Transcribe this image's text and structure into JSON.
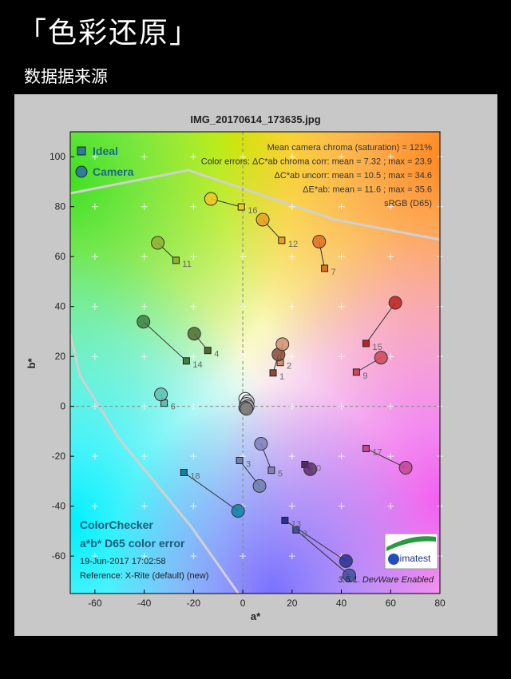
{
  "header": {
    "title": "「色彩还原」",
    "subtitle": "数据据来源"
  },
  "chart_data": {
    "type": "scatter",
    "title": "IMG_20170614_173635.jpg",
    "x_label": "a*",
    "y_label": "b*",
    "xlim": [
      -70,
      80
    ],
    "ylim": [
      -75,
      110
    ],
    "xticks": [
      -60,
      -40,
      -20,
      0,
      20,
      40,
      60,
      80
    ],
    "yticks": [
      -60,
      -40,
      -20,
      0,
      20,
      40,
      60,
      80,
      100
    ],
    "grid": true,
    "legend_position": "upper left",
    "point_labels": [
      1,
      2,
      3,
      4,
      5,
      6,
      7,
      8,
      9,
      10,
      11,
      12,
      13,
      14,
      15,
      16,
      17,
      18,
      null,
      null,
      null,
      null,
      null,
      null
    ],
    "point_colors": [
      "#8b4a3a",
      "#d09070",
      "#6f7fae",
      "#4f6b30",
      "#8080b8",
      "#60c0b0",
      "#e07020",
      "#4050a0",
      "#d04858",
      "#5a2a68",
      "#90b030",
      "#e8a020",
      "#283090",
      "#408040",
      "#c02020",
      "#f0c820",
      "#c04890",
      "#1080a8",
      "#f4f4f4",
      "#dcdcdc",
      "#c4c4c4",
      "#acacac",
      "#949494",
      "#7c7c7c"
    ],
    "series": [
      {
        "name": "Ideal",
        "color": "#2a7f9a",
        "x": [
          12.3,
          15.2,
          -1.3,
          -14.2,
          11.6,
          -31.9,
          33.2,
          21.6,
          46.1,
          25.2,
          -27.1,
          15.8,
          17.1,
          -22.9,
          50,
          -0.6,
          50,
          -23.9,
          0,
          0,
          0,
          0,
          0,
          0
        ],
        "values": [
          13.4,
          17.6,
          -21.7,
          22.4,
          -25.6,
          1.3,
          55.3,
          -49.5,
          13.7,
          -23.3,
          58.5,
          66.5,
          -45.7,
          18.2,
          25.2,
          79.9,
          -16.9,
          -26.5,
          0,
          0,
          0,
          0,
          0,
          0
        ]
      },
      {
        "name": "Camera",
        "color": "#2a7f9a",
        "x": [
          14.5,
          16.1,
          6.8,
          -19.7,
          7.4,
          -33.2,
          31,
          43.2,
          56.1,
          27.4,
          -34.5,
          8.1,
          41.9,
          -40.3,
          61.9,
          -12.9,
          66.1,
          -1.9,
          1,
          2,
          1.5,
          2,
          1,
          1.5
        ],
        "values": [
          20.8,
          24.9,
          -31.9,
          29.1,
          -15,
          4.8,
          66,
          -67.7,
          19.5,
          -25.2,
          65.5,
          74.8,
          -62,
          33.9,
          41.5,
          83.1,
          -24.6,
          -41.9,
          3,
          2,
          1,
          0,
          -0.5,
          -1
        ]
      }
    ],
    "annotations_top_right": [
      "Mean camera chroma (saturation) = 121%",
      "Color errors: ΔC*ab chroma corr:  mean = 7.32 ;  max = 23.9",
      "ΔC*ab uncorr:  mean = 10.5 ;  max = 34.6",
      "ΔE*ab:  mean = 11.6 ;  max = 35.6",
      "sRGB (D65)"
    ],
    "annotations_bottom_left": [
      "ColorChecker",
      "a*b* D65 color error",
      "19-Jun-2017 17:02:58",
      "Reference: X-Rite (default) (new)"
    ],
    "version_note": "3.5.1. DevWare Enabled",
    "logo": "imatest"
  }
}
